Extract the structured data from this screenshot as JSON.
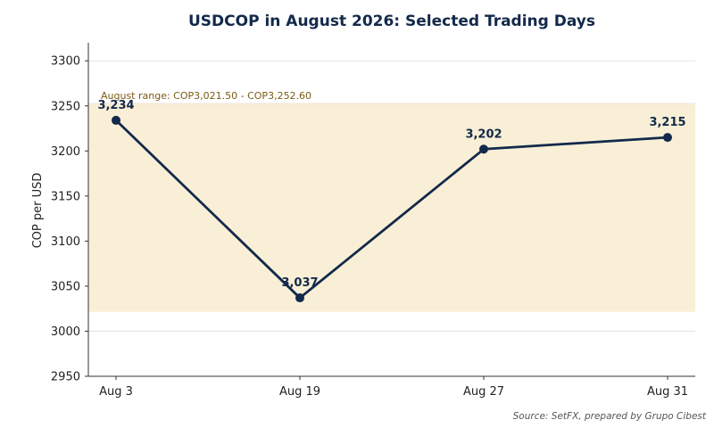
{
  "chart_data": {
    "type": "line",
    "title": "USDCOP in August 2026: Selected Trading Days",
    "xlabel": "",
    "ylabel": "COP per USD",
    "categories": [
      "Aug 3",
      "Aug 19",
      "Aug 27",
      "Aug 31"
    ],
    "series": [
      {
        "values": [
          3234,
          3037,
          3202,
          3215
        ],
        "data_labels": [
          "3,234",
          "3,037",
          "3,202",
          "3,215"
        ],
        "color": "#13294b"
      }
    ],
    "ylim": [
      2950,
      3320
    ],
    "yticks": [
      2950,
      3000,
      3050,
      3100,
      3150,
      3200,
      3250,
      3300
    ],
    "grid": "horizontal",
    "band": {
      "low": 3021.5,
      "high": 3252.6,
      "label": "August range: COP3,021.50 - COP3,252.60",
      "color": "#f8efd6"
    },
    "source": "Source: SetFX, prepared by Grupo Cibest"
  }
}
